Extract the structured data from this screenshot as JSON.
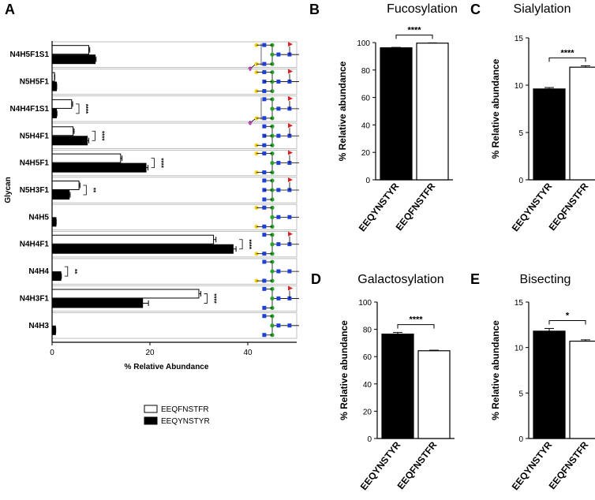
{
  "colors": {
    "EEQFNSTFR": "#ffffff",
    "EEQYNSTYR": "#000000",
    "gal": "#f2d21b",
    "man": "#2ca02c",
    "glcnac": "#1f3fd6",
    "fuc": "#e02020",
    "sia": "#b020b0"
  },
  "chart_data": [
    {
      "id": "A",
      "panel_label": "A",
      "type": "bar",
      "orientation": "horizontal",
      "ylabel": "Glycan",
      "xlabel": "% Relative Abundance",
      "xlim": [
        0,
        50
      ],
      "xticks": [
        0,
        20,
        40
      ],
      "categories": [
        "N4H5F1S1",
        "N5H5F1",
        "N4H4F1S1",
        "N5H4F1",
        "N4H5F1",
        "N5H3F1",
        "N4H5",
        "N4H4F1",
        "N4H4",
        "N4H3F1",
        "N4H3"
      ],
      "series": [
        {
          "name": "EEQFNSTFR",
          "values": [
            7.5,
            0.5,
            4.0,
            4.3,
            14.0,
            5.5,
            0.0,
            33.0,
            0.0,
            30.0,
            0.0
          ],
          "errors": [
            0.2,
            0.05,
            0.2,
            0.2,
            0.3,
            0.2,
            0,
            0.5,
            0,
            0.4,
            0
          ]
        },
        {
          "name": "EEQYNSTYR",
          "values": [
            8.8,
            0.9,
            0.9,
            7.2,
            19.2,
            3.5,
            0.8,
            37.0,
            1.8,
            18.5,
            0.7
          ],
          "errors": [
            0.2,
            0.05,
            0.1,
            0.3,
            0.4,
            0.2,
            0.05,
            0.6,
            0.1,
            1.2,
            0.05
          ]
        }
      ],
      "significance": [
        "",
        "",
        "****",
        "****",
        "****",
        "**",
        "",
        "****",
        "**",
        "****",
        ""
      ],
      "glycans": [
        {
          "sia": true,
          "bis": false,
          "gal": 2,
          "fuc": true
        },
        {
          "sia": false,
          "bis": true,
          "gal": 2,
          "fuc": true
        },
        {
          "sia": true,
          "bis": false,
          "gal": 1,
          "fuc": true
        },
        {
          "sia": false,
          "bis": true,
          "gal": 1,
          "fuc": true
        },
        {
          "sia": false,
          "bis": false,
          "gal": 2,
          "fuc": true
        },
        {
          "sia": false,
          "bis": true,
          "gal": 0,
          "fuc": true
        },
        {
          "sia": false,
          "bis": false,
          "gal": 2,
          "fuc": false
        },
        {
          "sia": false,
          "bis": false,
          "gal": 1,
          "fuc": true
        },
        {
          "sia": false,
          "bis": false,
          "gal": 1,
          "fuc": false
        },
        {
          "sia": false,
          "bis": false,
          "gal": 0,
          "fuc": true
        },
        {
          "sia": false,
          "bis": false,
          "gal": 0,
          "fuc": false
        }
      ],
      "legend": [
        "EEQFNSTFR",
        "EEQYNSTYR"
      ]
    },
    {
      "id": "B",
      "panel_label": "B",
      "title": "Fucosylation",
      "type": "bar",
      "ylabel": "% Relative abundance",
      "ylim": [
        0,
        100
      ],
      "yticks": [
        0,
        20,
        40,
        60,
        80,
        100
      ],
      "categories": [
        "EEQYNSTYR",
        "EEQFNSTFR"
      ],
      "values": [
        96.2,
        99.6
      ],
      "errors": [
        0.3,
        0.2
      ],
      "significance": "****"
    },
    {
      "id": "C",
      "panel_label": "C",
      "title": "Sialylation",
      "type": "bar",
      "ylabel": "% Relative abundance",
      "ylim": [
        0,
        15
      ],
      "yticks": [
        0,
        5,
        10,
        15
      ],
      "categories": [
        "EEQYNSTYR",
        "EEQFNSTFR"
      ],
      "values": [
        9.6,
        11.9
      ],
      "errors": [
        0.15,
        0.15
      ],
      "significance": "****"
    },
    {
      "id": "D",
      "panel_label": "D",
      "title": "Galactosylation",
      "type": "bar",
      "ylabel": "% Relative abundance",
      "ylim": [
        0,
        100
      ],
      "yticks": [
        0,
        20,
        40,
        60,
        80,
        100
      ],
      "categories": [
        "EEQYNSTYR",
        "EEQFNSTFR"
      ],
      "values": [
        76.5,
        64.3
      ],
      "errors": [
        1.2,
        0.4
      ],
      "significance": "****"
    },
    {
      "id": "E",
      "panel_label": "E",
      "title": "Bisecting",
      "type": "bar",
      "ylabel": "% Relative abundance",
      "ylim": [
        0,
        15
      ],
      "yticks": [
        0,
        5,
        10,
        15
      ],
      "categories": [
        "EEQYNSTYR",
        "EEQFNSTFR"
      ],
      "values": [
        11.8,
        10.7
      ],
      "errors": [
        0.3,
        0.15
      ],
      "significance": "*"
    }
  ]
}
